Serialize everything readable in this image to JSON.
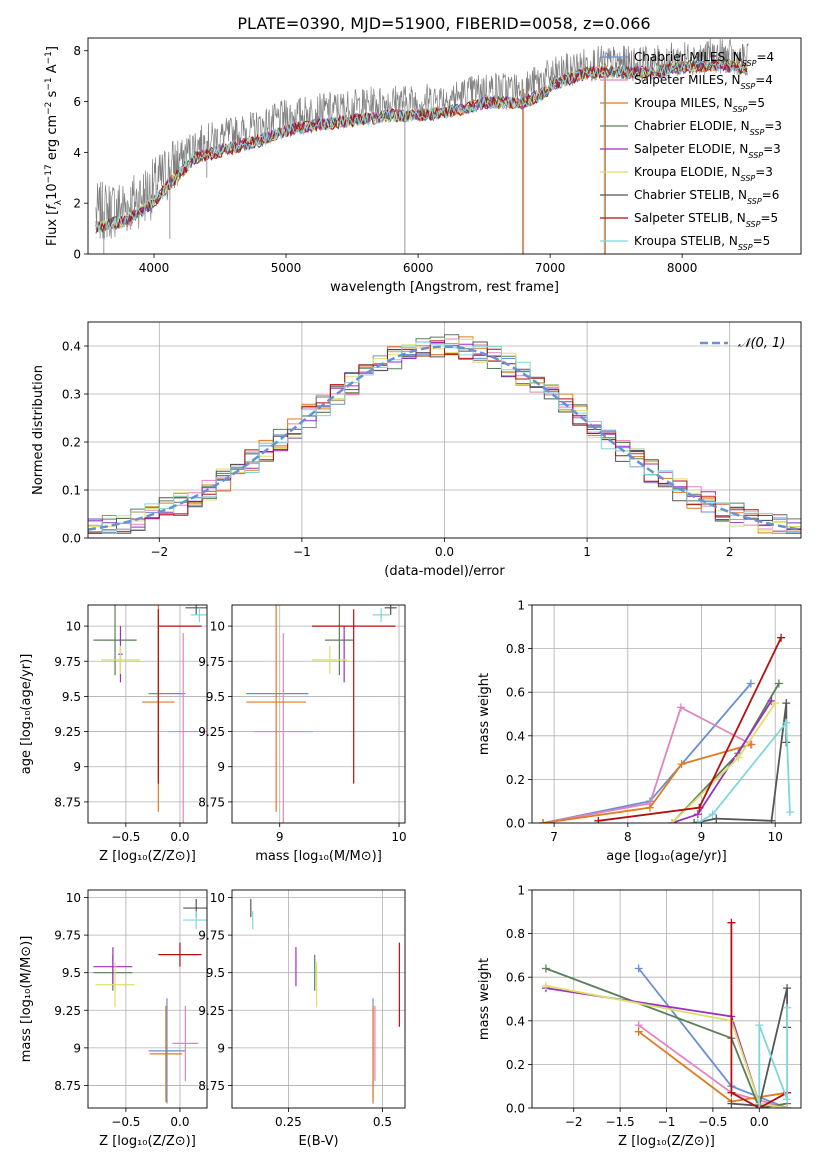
{
  "title": "PLATE=0390, MJD=51900, FIBERID=0058, z=0.066",
  "colors": {
    "Chabrier MILES": "#6a8fd4",
    "Salpeter MILES": "#e283c0",
    "Kroupa MILES": "#e07b1f",
    "Chabrier ELODIE": "#5a7f5a",
    "Salpeter ELODIE": "#9b30c0",
    "Kroupa ELODIE": "#dbe06a",
    "Chabrier STELIB": "#555555",
    "Salpeter STELIB": "#b50f0f",
    "Kroupa STELIB": "#7fd6dc",
    "data": "#808080",
    "normal": "#6a8fd4",
    "grid": "#b0b0b0"
  },
  "chart_data": [
    {
      "id": "spectrum",
      "type": "line",
      "title": "PLATE=0390, MJD=51900, FIBERID=0058, z=0.066",
      "xlabel": "wavelength [Angstrom, rest frame]",
      "ylabel_parts": [
        "Flux [",
        "f",
        "λ",
        "10",
        "−17",
        " erg cm",
        "−2",
        " s",
        "−1",
        " A",
        "−1",
        "]"
      ],
      "xlim": [
        3500,
        8900
      ],
      "ylim": [
        0,
        8.5
      ],
      "xticks": [
        4000,
        5000,
        6000,
        7000,
        8000
      ],
      "yticks": [
        0,
        2,
        4,
        6,
        8
      ],
      "grid": false,
      "legend_position": "right",
      "data_envelope": {
        "x": [
          3560,
          3800,
          4000,
          4100,
          4300,
          4500,
          4800,
          5000,
          5200,
          5500,
          5800,
          6000,
          6300,
          6500,
          6800,
          7000,
          7300,
          7500,
          7800,
          8000,
          8300,
          8500
        ],
        "y": [
          1.6,
          1.9,
          2.6,
          3.2,
          4.3,
          4.6,
          5.0,
          5.4,
          5.6,
          5.8,
          6.0,
          6.0,
          6.2,
          6.5,
          6.5,
          7.0,
          7.5,
          7.5,
          7.5,
          7.7,
          7.8,
          7.6
        ]
      },
      "legend": [
        {
          "name": "Chabrier MILES",
          "label": "Chabrier MILES, N",
          "sub": "SSP",
          "suffix": "=4"
        },
        {
          "name": "Salpeter MILES",
          "label": "Salpeter MILES, N",
          "sub": "SSP",
          "suffix": "=4"
        },
        {
          "name": "Kroupa MILES",
          "label": "Kroupa MILES, N",
          "sub": "SSP",
          "suffix": "=5"
        },
        {
          "name": "Chabrier ELODIE",
          "label": "Chabrier ELODIE, N",
          "sub": "SSP",
          "suffix": "=3"
        },
        {
          "name": "Salpeter ELODIE",
          "label": "Salpeter ELODIE, N",
          "sub": "SSP",
          "suffix": "=3"
        },
        {
          "name": "Kroupa ELODIE",
          "label": "Kroupa ELODIE, N",
          "sub": "SSP",
          "suffix": "=3"
        },
        {
          "name": "Chabrier STELIB",
          "label": "Chabrier STELIB, N",
          "sub": "SSP",
          "suffix": "=6"
        },
        {
          "name": "Salpeter STELIB",
          "label": "Salpeter STELIB, N",
          "sub": "SSP",
          "suffix": "=5"
        },
        {
          "name": "Kroupa STELIB",
          "label": "Kroupa STELIB, N",
          "sub": "SSP",
          "suffix": "=5"
        }
      ]
    },
    {
      "id": "residuals",
      "type": "histogram",
      "xlabel": "(data-model)/error",
      "ylabel": "Normed distribution",
      "xlim": [
        -2.5,
        2.5
      ],
      "ylim": [
        0,
        0.45
      ],
      "xticks": [
        -2,
        -1,
        0,
        1,
        2
      ],
      "yticks": [
        0.0,
        0.1,
        0.2,
        0.3,
        0.4
      ],
      "grid": true,
      "legend_position": "top-right",
      "legend_label": "𝒩(0, 1)",
      "bins": {
        "start": -2.5,
        "width": 0.1,
        "count": 50
      }
    },
    {
      "id": "age-vs-Z",
      "type": "errorbar",
      "xlabel": "Z [log₁₀(Z/Z⊙)]",
      "ylabel": "age  [log₁₀(age/yr)]",
      "xlim": [
        -0.85,
        0.25
      ],
      "ylim": [
        8.6,
        10.15
      ],
      "xticks": [
        -0.5,
        0.0
      ],
      "yticks": [
        8.75,
        9.0,
        9.25,
        9.5,
        9.75,
        10.0
      ],
      "grid": true,
      "points": [
        {
          "series": "Chabrier MILES",
          "x": -0.12,
          "xerr": 0.17,
          "y": 9.52,
          "yerr": 0.0
        },
        {
          "series": "Salpeter MILES",
          "x": 0.03,
          "xerr": 0.14,
          "y": 9.25,
          "yerr": 0.7
        },
        {
          "series": "Kroupa MILES",
          "x": -0.2,
          "xerr": 0.15,
          "y": 9.46,
          "yerr": 0.78
        },
        {
          "series": "Chabrier ELODIE",
          "x": -0.6,
          "xerr": 0.2,
          "y": 9.9,
          "yerr": 0.25
        },
        {
          "series": "Salpeter ELODIE",
          "x": -0.55,
          "xerr": 0.02,
          "y": 9.8,
          "yerr": 0.2
        },
        {
          "series": "Kroupa ELODIE",
          "x": -0.55,
          "xerr": 0.18,
          "y": 9.76,
          "yerr": 0.1
        },
        {
          "series": "Chabrier STELIB",
          "x": 0.15,
          "xerr": 0.1,
          "y": 10.13,
          "yerr": 0.05
        },
        {
          "series": "Salpeter STELIB",
          "x": 0.0,
          "xerr": 0.2,
          "y": 10.0,
          "yerr": 0.0
        },
        {
          "series": "Kroupa STELIB",
          "x": 0.18,
          "xerr": 0.08,
          "y": 10.08,
          "yerr": 0.05
        },
        {
          "series": "Salpeter STELIB",
          "x": -0.2,
          "xerr": 0.0,
          "y": 9.5,
          "yerr": 0.62
        },
        {
          "series": "Kroupa ELODIE",
          "x": -0.2,
          "xerr": 0.0,
          "y": 9.76,
          "yerr": 0.0
        }
      ]
    },
    {
      "id": "age-vs-mass",
      "type": "errorbar",
      "xlabel": "mass [log₁₀(M/M⊙)]",
      "ylabel": "",
      "xlim": [
        8.6,
        10.05
      ],
      "ylim": [
        8.6,
        10.15
      ],
      "xticks": [
        9,
        10
      ],
      "yticks": [
        8.75,
        9.0,
        9.25,
        9.5,
        9.75,
        10.0
      ],
      "grid": true,
      "points": [
        {
          "series": "Chabrier MILES",
          "x": 8.98,
          "xerr": 0.26,
          "y": 9.52,
          "yerr": 0.0
        },
        {
          "series": "Salpeter MILES",
          "x": 9.03,
          "xerr": 0.25,
          "y": 9.25,
          "yerr": 0.7
        },
        {
          "series": "Kroupa MILES",
          "x": 8.97,
          "xerr": 0.25,
          "y": 9.46,
          "yerr": 0.78
        },
        {
          "series": "Chabrier ELODIE",
          "x": 9.5,
          "xerr": 0.12,
          "y": 9.9,
          "yerr": 0.25
        },
        {
          "series": "Salpeter ELODIE",
          "x": 9.54,
          "xerr": 0.0,
          "y": 9.8,
          "yerr": 0.2
        },
        {
          "series": "Kroupa ELODIE",
          "x": 9.42,
          "xerr": 0.15,
          "y": 9.76,
          "yerr": 0.1
        },
        {
          "series": "Chabrier STELIB",
          "x": 9.93,
          "xerr": 0.05,
          "y": 10.13,
          "yerr": 0.05
        },
        {
          "series": "Salpeter STELIB",
          "x": 9.62,
          "xerr": 0.35,
          "y": 10.0,
          "yerr": 0.0
        },
        {
          "series": "Kroupa STELIB",
          "x": 9.85,
          "xerr": 0.07,
          "y": 10.08,
          "yerr": 0.05
        },
        {
          "series": "Salpeter STELIB",
          "x": 9.62,
          "xerr": 0.0,
          "y": 9.5,
          "yerr": 0.62
        }
      ]
    },
    {
      "id": "weight-vs-age",
      "type": "line",
      "xlabel": "age  [log₁₀(age/yr)]",
      "ylabel": "mass weight",
      "xlim": [
        6.7,
        10.35
      ],
      "ylim": [
        0,
        1.0
      ],
      "xticks": [
        7,
        8,
        9,
        10
      ],
      "yticks": [
        0.0,
        0.2,
        0.4,
        0.6,
        0.8,
        1.0
      ],
      "grid": true,
      "series": [
        {
          "name": "Chabrier MILES",
          "x": [
            6.85,
            8.3,
            9.67
          ],
          "y": [
            0.0,
            0.1,
            0.64
          ]
        },
        {
          "name": "Salpeter MILES",
          "x": [
            6.85,
            8.3,
            8.72,
            9.68
          ],
          "y": [
            0.0,
            0.09,
            0.53,
            0.36
          ]
        },
        {
          "name": "Kroupa MILES",
          "x": [
            6.85,
            8.3,
            8.73,
            9.67
          ],
          "y": [
            0.0,
            0.07,
            0.27,
            0.36
          ]
        },
        {
          "name": "Chabrier ELODIE",
          "x": [
            8.6,
            9.5,
            10.05
          ],
          "y": [
            0.0,
            0.32,
            0.64
          ]
        },
        {
          "name": "Salpeter ELODIE",
          "x": [
            8.6,
            8.95,
            9.95
          ],
          "y": [
            0.0,
            0.04,
            0.56
          ]
        },
        {
          "name": "Kroupa ELODIE",
          "x": [
            8.6,
            9.5,
            10.0
          ],
          "y": [
            0.0,
            0.3,
            0.55
          ]
        },
        {
          "name": "Chabrier STELIB",
          "x": [
            8.9,
            9.2,
            9.95,
            10.15,
            10.15
          ],
          "y": [
            0.0,
            0.02,
            0.01,
            0.55,
            0.37
          ]
        },
        {
          "name": "Salpeter STELIB",
          "x": [
            7.6,
            8.97,
            10.08
          ],
          "y": [
            0.01,
            0.07,
            0.85
          ]
        },
        {
          "name": "Kroupa STELIB",
          "x": [
            8.95,
            9.15,
            10.15,
            10.2
          ],
          "y": [
            0.0,
            0.04,
            0.46,
            0.05
          ]
        }
      ]
    },
    {
      "id": "mass-vs-Z",
      "type": "errorbar",
      "xlabel": "Z [log₁₀(Z/Z⊙)]",
      "ylabel": "mass [log₁₀(M/M⊙)]",
      "xlim": [
        -0.85,
        0.25
      ],
      "ylim": [
        8.6,
        10.05
      ],
      "xticks": [
        -0.5,
        0.0
      ],
      "yticks": [
        8.75,
        9.0,
        9.25,
        9.5,
        9.75,
        10.0
      ],
      "grid": true,
      "points": [
        {
          "series": "Chabrier MILES",
          "x": -0.12,
          "xerr": 0.17,
          "y": 8.98,
          "yerr": 0.35
        },
        {
          "series": "Salpeter MILES",
          "x": 0.05,
          "xerr": 0.12,
          "y": 9.03,
          "yerr": 0.25
        },
        {
          "series": "Kroupa MILES",
          "x": -0.13,
          "xerr": 0.15,
          "y": 8.96,
          "yerr": 0.32
        },
        {
          "series": "Chabrier ELODIE",
          "x": -0.62,
          "xerr": 0.18,
          "y": 9.5,
          "yerr": 0.12
        },
        {
          "series": "Salpeter ELODIE",
          "x": -0.62,
          "xerr": 0.18,
          "y": 9.54,
          "yerr": 0.13
        },
        {
          "series": "Kroupa ELODIE",
          "x": -0.6,
          "xerr": 0.18,
          "y": 9.42,
          "yerr": 0.15
        },
        {
          "series": "Chabrier STELIB",
          "x": 0.15,
          "xerr": 0.12,
          "y": 9.93,
          "yerr": 0.06
        },
        {
          "series": "Salpeter STELIB",
          "x": 0.0,
          "xerr": 0.2,
          "y": 9.62,
          "yerr": 0.08
        },
        {
          "series": "Kroupa STELIB",
          "x": 0.15,
          "xerr": 0.12,
          "y": 9.85,
          "yerr": 0.06
        }
      ]
    },
    {
      "id": "mass-vs-ebv",
      "type": "errorbar",
      "xlabel": "E(B-V)",
      "ylabel": "",
      "xlim": [
        0.1,
        0.56
      ],
      "ylim": [
        8.6,
        10.05
      ],
      "xticks": [
        0.25,
        0.5
      ],
      "yticks": [
        8.75,
        9.0,
        9.25,
        9.5,
        9.75,
        10.0
      ],
      "grid": true,
      "points": [
        {
          "series": "Chabrier MILES",
          "x": 0.475,
          "xerr": 0.0,
          "y": 8.98,
          "yerr": 0.35
        },
        {
          "series": "Salpeter MILES",
          "x": 0.48,
          "xerr": 0.0,
          "y": 9.03,
          "yerr": 0.25
        },
        {
          "series": "Kroupa MILES",
          "x": 0.475,
          "xerr": 0.0,
          "y": 8.96,
          "yerr": 0.32
        },
        {
          "series": "Chabrier ELODIE",
          "x": 0.32,
          "xerr": 0.0,
          "y": 9.5,
          "yerr": 0.12
        },
        {
          "series": "Salpeter ELODIE",
          "x": 0.27,
          "xerr": 0.0,
          "y": 9.54,
          "yerr": 0.13
        },
        {
          "series": "Kroupa ELODIE",
          "x": 0.325,
          "xerr": 0.0,
          "y": 9.42,
          "yerr": 0.15
        },
        {
          "series": "Chabrier STELIB",
          "x": 0.15,
          "xerr": 0.0,
          "y": 9.93,
          "yerr": 0.06
        },
        {
          "series": "Salpeter STELIB",
          "x": 0.545,
          "xerr": 0.0,
          "y": 9.42,
          "yerr": 0.28
        },
        {
          "series": "Kroupa STELIB",
          "x": 0.155,
          "xerr": 0.0,
          "y": 9.85,
          "yerr": 0.06
        }
      ]
    },
    {
      "id": "weight-vs-Z",
      "type": "line",
      "xlabel": "Z [log₁₀(Z/Z⊙)]",
      "ylabel": "mass weight",
      "xlim": [
        -2.45,
        0.45
      ],
      "ylim": [
        0,
        1.0
      ],
      "xticks": [
        -2.0,
        -1.5,
        -1.0,
        -0.5,
        0.0
      ],
      "yticks": [
        0.0,
        0.2,
        0.4,
        0.6,
        0.8,
        1.0
      ],
      "grid": true,
      "series": [
        {
          "name": "Chabrier MILES",
          "x": [
            -1.3,
            -0.3,
            0.3
          ],
          "y": [
            0.64,
            0.1,
            0.0
          ]
        },
        {
          "name": "Salpeter MILES",
          "x": [
            -1.3,
            -0.3,
            0.3
          ],
          "y": [
            0.38,
            0.07,
            0.0
          ]
        },
        {
          "name": "Kroupa MILES",
          "x": [
            -1.3,
            -0.3,
            0.3
          ],
          "y": [
            0.35,
            0.03,
            0.07
          ]
        },
        {
          "name": "Chabrier ELODIE",
          "x": [
            -2.3,
            -0.3,
            0.0,
            0.3
          ],
          "y": [
            0.64,
            0.32,
            0.0,
            0.02
          ]
        },
        {
          "name": "Salpeter ELODIE",
          "x": [
            -2.3,
            -0.3,
            0.0,
            0.3
          ],
          "y": [
            0.55,
            0.42,
            0.02,
            0.0
          ]
        },
        {
          "name": "Kroupa ELODIE",
          "x": [
            -2.3,
            -0.3,
            0.0,
            0.3
          ],
          "y": [
            0.56,
            0.4,
            0.02,
            0.0
          ]
        },
        {
          "name": "Chabrier STELIB",
          "x": [
            -0.3,
            0.0,
            0.3,
            0.3
          ],
          "y": [
            0.02,
            0.01,
            0.55,
            0.37
          ]
        },
        {
          "name": "Salpeter STELIB",
          "x": [
            -0.3,
            -0.3,
            0.0,
            0.3
          ],
          "y": [
            0.85,
            0.07,
            0.0,
            0.07
          ]
        },
        {
          "name": "Kroupa STELIB",
          "x": [
            0.0,
            0.0,
            0.3,
            0.3
          ],
          "y": [
            0.0,
            0.38,
            0.04,
            0.46
          ]
        }
      ]
    }
  ]
}
